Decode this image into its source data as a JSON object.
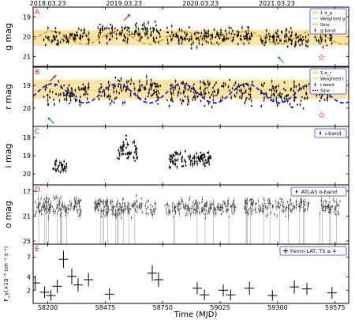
{
  "top_dates": [
    "2018.03.23",
    "2019.03.23",
    "2020.03.23",
    "2021.03.23"
  ],
  "top_date_mjd": [
    58200,
    58565,
    58931,
    59296
  ],
  "xaxis": {
    "label": "Time (MJD)",
    "ticks": [
      58200,
      58475,
      58750,
      59025,
      59300,
      59575
    ],
    "range": [
      58130,
      59640
    ]
  },
  "colors": {
    "band": "#f7dc8a",
    "weighted_g": "#f2a900",
    "sine_g": "#e69500",
    "weighted_r": "#f2a900",
    "sine_r": "#1f1fcc",
    "arrow_red": "#e02020",
    "arrow_green": "#20a040",
    "star": "#f08080",
    "legend_border": "#3040c0",
    "panel_letter": "#e02020"
  },
  "chart_data": [
    {
      "id": "A",
      "type": "scatter",
      "ylabel": "g mag",
      "ylim": [
        21.5,
        18.5
      ],
      "inverted": true,
      "yticks": [
        19,
        20,
        21
      ],
      "band": [
        19.65,
        20.45
      ],
      "weighted_mean": 20.0,
      "sine": {
        "amp": 0.33,
        "period_days": 310,
        "phase_mjd": 58300,
        "offset": 20.05
      },
      "series_name": "g-band",
      "legend": [
        "1 σ_g",
        "Weighted g",
        "Sine",
        "g-band"
      ],
      "arrows": [
        {
          "color": "red",
          "x": 58595,
          "y": 18.85
        },
        {
          "color": "green",
          "x": 59300,
          "y": 21.0
        }
      ],
      "star": {
        "x": 59510,
        "y": 21.05
      },
      "segments": [
        {
          "from": 58180,
          "to": 58400,
          "center": 20.0,
          "spread": 0.35,
          "n": 75
        },
        {
          "from": 58440,
          "to": 58740,
          "center": 19.8,
          "spread": 0.45,
          "n": 110
        },
        {
          "from": 58770,
          "to": 59180,
          "center": 20.0,
          "spread": 0.4,
          "n": 150
        },
        {
          "from": 59220,
          "to": 59450,
          "center": 20.1,
          "spread": 0.4,
          "n": 85
        },
        {
          "from": 59480,
          "to": 59560,
          "center": 20.1,
          "spread": 0.3,
          "n": 25
        }
      ]
    },
    {
      "id": "B",
      "type": "scatter",
      "ylabel": "r mag",
      "ylim": [
        20.8,
        18.2
      ],
      "inverted": true,
      "yticks": [
        19,
        20
      ],
      "band": [
        18.75,
        19.6
      ],
      "weighted_mean": 19.2,
      "sine": {
        "amp": 0.42,
        "period_days": 310,
        "phase_mjd": 58300,
        "offset": 19.35
      },
      "series_name": "r-band",
      "legend": [
        "1 σ_r",
        "Weighted r",
        "r-band",
        "Sine"
      ],
      "arrows": [
        {
          "color": "red",
          "x": 58240,
          "y": 18.55
        },
        {
          "color": "green",
          "x": 58200,
          "y": 20.4
        }
      ],
      "star": {
        "x": 59510,
        "y": 20.3
      },
      "segments": [
        {
          "from": 58180,
          "to": 58400,
          "center": 19.3,
          "spread": 0.45,
          "n": 75
        },
        {
          "from": 58440,
          "to": 58740,
          "center": 19.2,
          "spread": 0.5,
          "n": 110
        },
        {
          "from": 58770,
          "to": 59180,
          "center": 19.3,
          "spread": 0.45,
          "n": 150
        },
        {
          "from": 59220,
          "to": 59450,
          "center": 19.4,
          "spread": 0.45,
          "n": 85
        },
        {
          "from": 59480,
          "to": 59560,
          "center": 19.4,
          "spread": 0.35,
          "n": 25
        }
      ]
    },
    {
      "id": "C",
      "type": "scatter",
      "ylabel": "i mag",
      "ylim": [
        20.6,
        17.4
      ],
      "inverted": true,
      "yticks": [
        18,
        19,
        20
      ],
      "series_name": "i-band",
      "legend": [
        "i-band"
      ],
      "segments": [
        {
          "from": 58225,
          "to": 58290,
          "center": 19.6,
          "spread": 0.35,
          "n": 30
        },
        {
          "from": 58530,
          "to": 58630,
          "center": 18.8,
          "spread": 0.5,
          "n": 45
        },
        {
          "from": 58780,
          "to": 58980,
          "center": 19.2,
          "spread": 0.45,
          "n": 100
        }
      ],
      "outliers": [
        {
          "x": 58575,
          "y": 17.9
        },
        {
          "x": 58575,
          "y": 18.1
        }
      ]
    },
    {
      "id": "D",
      "type": "scatter",
      "ylabel": "o mag",
      "ylim": [
        25.5,
        16.0
      ],
      "inverted": true,
      "yticks": [
        17,
        21,
        25
      ],
      "series_name": "ATLAS o-band",
      "legend": [
        "ATLAS o-band"
      ],
      "segments": [
        {
          "from": 58140,
          "to": 58360,
          "center": 19.5,
          "spread": 1.2,
          "n": 140
        },
        {
          "from": 58420,
          "to": 58720,
          "center": 19.7,
          "spread": 1.3,
          "n": 170
        },
        {
          "from": 58760,
          "to": 59100,
          "center": 19.7,
          "spread": 1.2,
          "n": 170
        },
        {
          "from": 59140,
          "to": 59450,
          "center": 19.3,
          "spread": 1.3,
          "n": 150
        },
        {
          "from": 59500,
          "to": 59600,
          "center": 19.5,
          "spread": 1.2,
          "n": 50
        }
      ]
    },
    {
      "id": "E",
      "type": "scatter",
      "ylabel": "F_γ(×10⁻⁸ cm⁻² s⁻¹)",
      "ylim": [
        0,
        9
      ],
      "yticks": [
        2,
        4,
        7
      ],
      "series_name": "Fermi-LAT, TS ≥ 4",
      "legend": [
        "Fermi-LAT, TS ≥ 4"
      ],
      "points": [
        {
          "x": 58140,
          "y": 3.1,
          "ey": 1.1
        },
        {
          "x": 58185,
          "y": 1.7,
          "ey": 0.9
        },
        {
          "x": 58215,
          "y": 1.2,
          "ey": 0.8
        },
        {
          "x": 58245,
          "y": 2.6,
          "ey": 1.0
        },
        {
          "x": 58275,
          "y": 6.7,
          "ey": 1.3
        },
        {
          "x": 58315,
          "y": 4.1,
          "ey": 1.2
        },
        {
          "x": 58345,
          "y": 2.8,
          "ey": 1.0
        },
        {
          "x": 58395,
          "y": 3.6,
          "ey": 1.0
        },
        {
          "x": 58495,
          "y": 1.4,
          "ey": 0.9
        },
        {
          "x": 58700,
          "y": 4.6,
          "ey": 1.2
        },
        {
          "x": 58730,
          "y": 3.6,
          "ey": 1.1
        },
        {
          "x": 58915,
          "y": 2.3,
          "ey": 0.9
        },
        {
          "x": 58950,
          "y": 1.3,
          "ey": 0.8
        },
        {
          "x": 59040,
          "y": 2.0,
          "ey": 0.9
        },
        {
          "x": 59075,
          "y": 1.3,
          "ey": 0.8
        },
        {
          "x": 59165,
          "y": 2.3,
          "ey": 1.0
        },
        {
          "x": 59275,
          "y": 1.2,
          "ey": 0.8
        },
        {
          "x": 59380,
          "y": 2.5,
          "ey": 1.0
        },
        {
          "x": 59440,
          "y": 2.2,
          "ey": 0.9
        },
        {
          "x": 59560,
          "y": 1.6,
          "ey": 0.9
        }
      ]
    }
  ]
}
